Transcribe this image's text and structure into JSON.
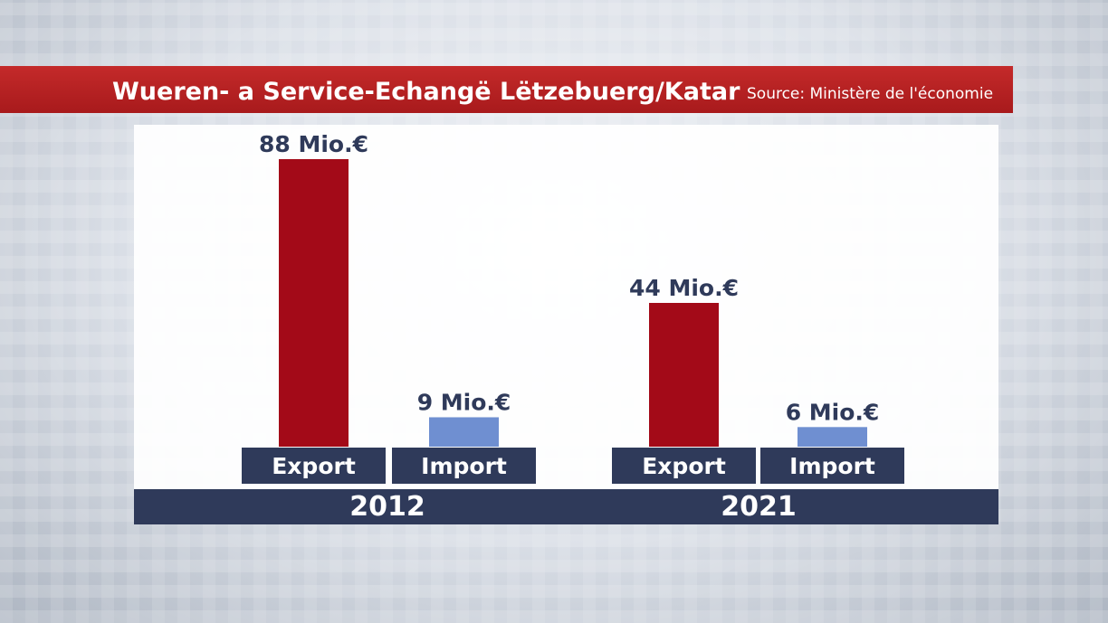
{
  "header": {
    "title": "Wueren- a Service-Echangë Lëtzebuerg/Katar",
    "source": "Source: Ministère de l'économie"
  },
  "colors": {
    "export": "#a30a18",
    "import": "#6f8fd1",
    "label_box": "#2f3a5a",
    "value_text": "#2f3a5a"
  },
  "chart_data": {
    "type": "bar",
    "title": "Wueren- a Service-Echangë Lëtzebuerg/Katar",
    "groups": [
      "2012",
      "2021"
    ],
    "categories": [
      "Export",
      "Import"
    ],
    "unit": "Mio.€",
    "series": [
      {
        "group": "2012",
        "values": [
          88,
          9
        ],
        "labels": [
          "88 Mio.€",
          "9 Mio.€"
        ]
      },
      {
        "group": "2021",
        "values": [
          44,
          6
        ],
        "labels": [
          "44 Mio.€",
          "6 Mio.€"
        ]
      }
    ],
    "ylim": [
      0,
      88
    ],
    "grid": false,
    "legend": "none"
  }
}
